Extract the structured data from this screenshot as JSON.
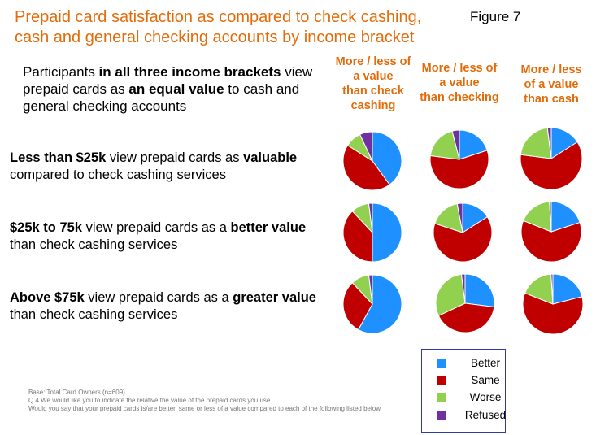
{
  "header": {
    "title": "Prepaid card satisfaction as compared to check cashing, cash and general checking accounts by income bracket",
    "figure_label": "Figure 7"
  },
  "intro": {
    "t1": "Participants ",
    "t2": "in all three income brackets",
    "t3": " view prepaid cards as ",
    "t4": "an equal value",
    "t5": " to cash and general checking accounts"
  },
  "rows": [
    {
      "bold1": "Less than $25k",
      "plain1": " view prepaid cards as ",
      "bold2": "valuable",
      "plain2": " compared to check cashing services"
    },
    {
      "bold1": "$25k to 75k",
      "plain1": " view prepaid cards as a ",
      "bold2": "better value",
      "plain2": " than check cashing services"
    },
    {
      "bold1": "Above $75k",
      "plain1": " view prepaid cards as a ",
      "bold2": "greater value",
      "plain2": " than check cashing services"
    }
  ],
  "columns": [
    {
      "line1": "More / less of",
      "line2": "a value",
      "line3": "than check",
      "line4": "cashing"
    },
    {
      "line1": "More / less of",
      "line2": "a value",
      "line3": "than checking"
    },
    {
      "line1": "More / less",
      "line2": "of a value",
      "line3": "than cash"
    }
  ],
  "legend": {
    "items": [
      {
        "label": "Better",
        "color": "#1e90ff"
      },
      {
        "label": "Same",
        "color": "#c00000"
      },
      {
        "label": "Worse",
        "color": "#92d050"
      },
      {
        "label": "Refused",
        "color": "#7030a0"
      }
    ]
  },
  "footnote": {
    "line1": "Base: Total Card Owners (n=609)",
    "line2": "Q.4 We would like you to indicate the relative the value of the prepaid cards you use.",
    "line3": "Would you say that your prepaid cards is/are better, same or less of a value compared to each of the following listed below."
  },
  "chart_data": {
    "type": "pie",
    "categories": [
      "Better",
      "Same",
      "Worse",
      "Refused"
    ],
    "colors": [
      "#1e90ff",
      "#c00000",
      "#92d050",
      "#7030a0"
    ],
    "pies": [
      {
        "row": "Less than $25k",
        "column": "More / less of a value than check cashing",
        "values": [
          40,
          44,
          9,
          7
        ]
      },
      {
        "row": "Less than $25k",
        "column": "More / less of a value than checking",
        "values": [
          20,
          57,
          19,
          4
        ]
      },
      {
        "row": "Less than $25k",
        "column": "More / less of a value than cash",
        "values": [
          16,
          61,
          21,
          2
        ]
      },
      {
        "row": "$25k to 75k",
        "column": "More / less of a value than check cashing",
        "values": [
          50,
          38,
          10,
          2
        ]
      },
      {
        "row": "$25k to 75k",
        "column": "More / less of a value than checking",
        "values": [
          16,
          64,
          17,
          3
        ]
      },
      {
        "row": "$25k to 75k",
        "column": "More / less of a value than cash",
        "values": [
          20,
          61,
          18,
          1
        ]
      },
      {
        "row": "Above $75k",
        "column": "More / less of a value than check cashing",
        "values": [
          58,
          30,
          10,
          2
        ]
      },
      {
        "row": "Above $75k",
        "column": "More / less of a value than checking",
        "values": [
          27,
          41,
          30,
          2
        ]
      },
      {
        "row": "Above $75k",
        "column": "More / less of a value than cash",
        "values": [
          21,
          60,
          18,
          1
        ]
      }
    ]
  }
}
